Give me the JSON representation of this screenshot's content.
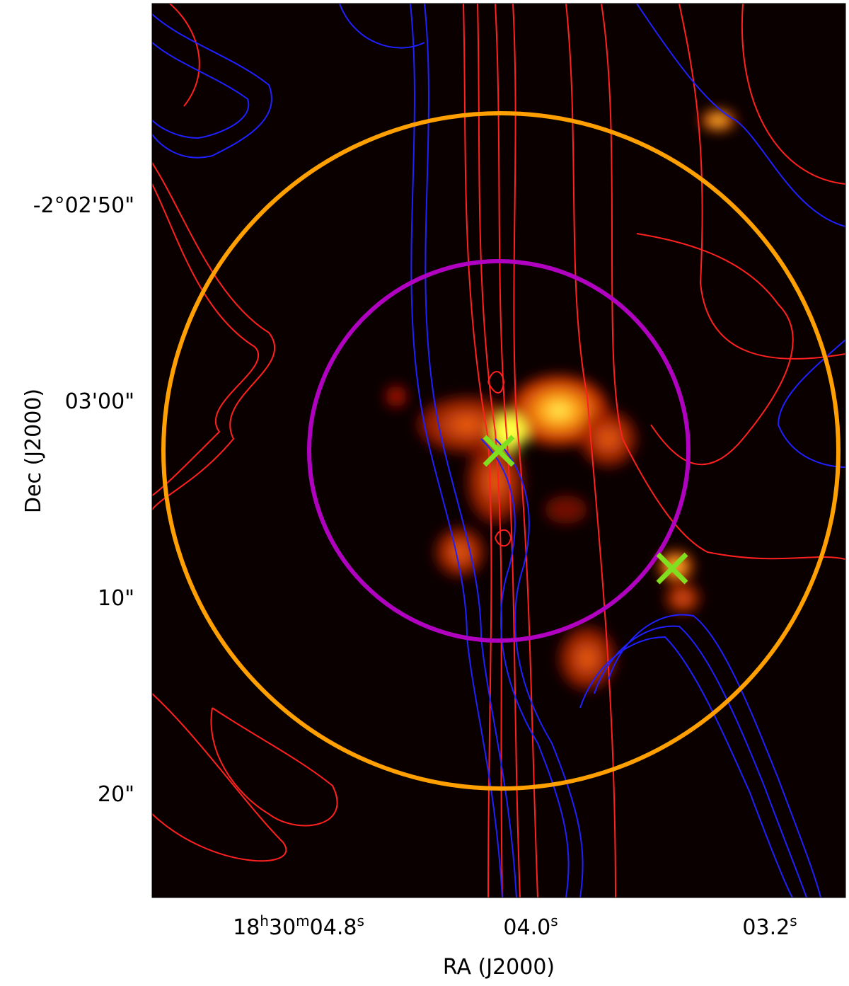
{
  "plot": {
    "x_label": "RA (J2000)",
    "y_label": "Dec (J2000)",
    "x_ticks": [
      [
        "18",
        "h",
        "30",
        "m",
        "04.8",
        "s"
      ],
      [
        "04.0",
        "s"
      ],
      [
        "03.2",
        "s"
      ]
    ],
    "y_ticks": [
      "-2°02'50\"",
      "03'00\"",
      "10\"",
      "20\""
    ]
  }
}
